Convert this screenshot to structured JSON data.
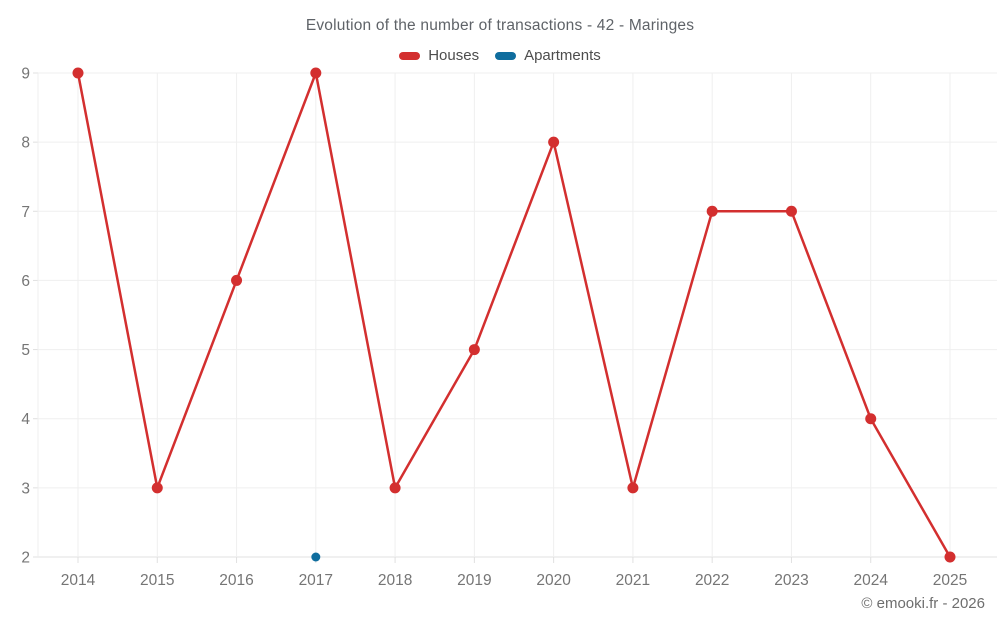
{
  "title": "Evolution of the number of transactions - 42 - Maringes",
  "copyright": "© emooki.fr - 2026",
  "colors": {
    "houses": "#d32f2f",
    "apartments": "#0f6d9e",
    "grid_line": "#efefef",
    "axis_line": "#e0e0e0",
    "tick_label": "#757575",
    "title_text": "#5f6368",
    "legend_text": "#4d4d4d",
    "background": "#ffffff"
  },
  "chart_data": {
    "type": "line",
    "title": "Evolution of the number of transactions - 42 - Maringes",
    "x": [
      2014,
      2015,
      2016,
      2017,
      2018,
      2019,
      2020,
      2021,
      2022,
      2023,
      2024,
      2025
    ],
    "series": [
      {
        "name": "Houses",
        "color": "#d32f2f",
        "values": [
          9,
          3,
          6,
          9,
          3,
          5,
          8,
          3,
          7,
          7,
          4,
          2
        ]
      },
      {
        "name": "Apartments",
        "color": "#0f6d9e",
        "values": [
          null,
          null,
          null,
          2,
          null,
          null,
          null,
          null,
          null,
          null,
          null,
          null
        ]
      }
    ],
    "xlabel": "",
    "ylabel": "",
    "ylim": [
      2,
      9
    ],
    "yticks": [
      2,
      3,
      4,
      5,
      6,
      7,
      8,
      9
    ],
    "grid": true,
    "legend_position": "top",
    "annotation": "© emooki.fr - 2026"
  }
}
